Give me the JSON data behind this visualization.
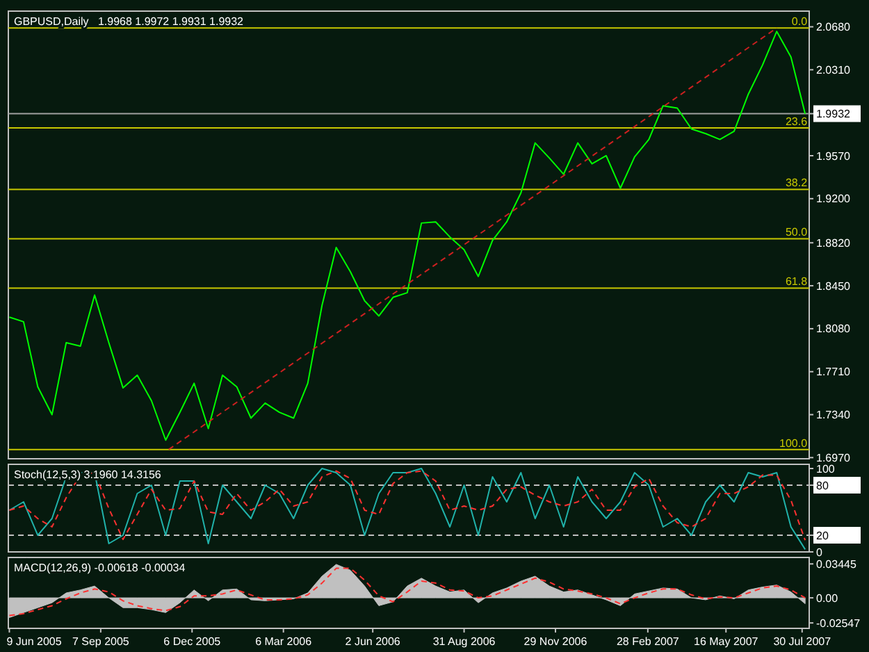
{
  "chart_data": [
    {
      "type": "line",
      "title": "GBPUSD,Daily   1.9968 1.9972 1.9931 1.9932",
      "x": [
        "2005-06-09",
        "2005-06-23",
        "2005-07-07",
        "2005-07-21",
        "2005-08-04",
        "2005-08-18",
        "2005-09-01",
        "2005-09-15",
        "2005-09-29",
        "2005-10-13",
        "2005-10-27",
        "2005-11-10",
        "2005-11-24",
        "2005-12-08",
        "2005-12-22",
        "2006-01-05",
        "2006-01-19",
        "2006-02-02",
        "2006-02-16",
        "2006-03-02",
        "2006-03-16",
        "2006-03-30",
        "2006-04-13",
        "2006-04-27",
        "2006-05-11",
        "2006-05-25",
        "2006-06-08",
        "2006-06-22",
        "2006-07-06",
        "2006-07-20",
        "2006-08-03",
        "2006-08-17",
        "2006-08-31",
        "2006-09-14",
        "2006-09-28",
        "2006-10-12",
        "2006-10-26",
        "2006-11-09",
        "2006-11-23",
        "2006-12-07",
        "2006-12-21",
        "2007-01-04",
        "2007-01-18",
        "2007-02-01",
        "2007-02-15",
        "2007-03-01",
        "2007-03-15",
        "2007-03-29",
        "2007-04-12",
        "2007-04-26",
        "2007-05-10",
        "2007-05-24",
        "2007-06-07",
        "2007-06-21",
        "2007-07-05",
        "2007-07-19",
        "2007-08-02"
      ],
      "xlim": [
        "2005-06-08",
        "2007-08-06"
      ],
      "ylim": [
        1.696,
        2.0815
      ],
      "yticks": [
        {
          "value": 2.068,
          "label": "2.0680"
        },
        {
          "value": 2.031,
          "label": "2.0310"
        },
        {
          "value": 1.9932,
          "label": "1.9932"
        },
        {
          "value": 1.957,
          "label": "1.9570"
        },
        {
          "value": 1.92,
          "label": "1.9200"
        },
        {
          "value": 1.882,
          "label": "1.8820"
        },
        {
          "value": 1.845,
          "label": "1.8450"
        },
        {
          "value": 1.808,
          "label": "1.8080"
        },
        {
          "value": 1.771,
          "label": "1.7710"
        },
        {
          "value": 1.734,
          "label": "1.7340"
        },
        {
          "value": 1.697,
          "label": "1.6970"
        }
      ],
      "tick_labels": "y",
      "series": [
        {
          "color": "#00ff00",
          "values": [
            1.818,
            1.814,
            1.758,
            1.734,
            1.796,
            1.793,
            1.837,
            1.796,
            1.757,
            1.768,
            1.746,
            1.712,
            1.736,
            1.761,
            1.722,
            1.768,
            1.758,
            1.731,
            1.744,
            1.736,
            1.731,
            1.761,
            1.828,
            1.878,
            1.857,
            1.832,
            1.819,
            1.835,
            1.839,
            1.899,
            1.9,
            1.887,
            1.876,
            1.853,
            1.884,
            1.9,
            1.925,
            1.968,
            1.955,
            1.941,
            1.968,
            1.95,
            1.957,
            1.929,
            1.956,
            1.971,
            2.0,
            1.998,
            1.98,
            1.976,
            1.971,
            1.978,
            2.01,
            2.035,
            2.064,
            2.042,
            1.993
          ]
        },
        {
          "type": "line",
          "color": "#cc2020",
          "line_style": "dashed",
          "x": [
            "2005-11-13",
            "2007-07-05"
          ],
          "values": [
            1.704,
            2.067
          ]
        }
      ],
      "ref_lines": [
        {
          "axis": "y",
          "value": 2.067,
          "color": "#c8c800"
        },
        {
          "axis": "y",
          "value": 1.981,
          "color": "#c8c800"
        },
        {
          "axis": "y",
          "value": 1.928,
          "color": "#c8c800"
        },
        {
          "axis": "y",
          "value": 1.8855,
          "color": "#c8c800"
        },
        {
          "axis": "y",
          "value": 1.843,
          "color": "#c8c800"
        },
        {
          "axis": "y",
          "value": 1.704,
          "color": "#c8c800"
        },
        {
          "axis": "y",
          "value": 1.9932,
          "color": "#a0a0a0"
        }
      ],
      "annotations": [
        {
          "text": "0.0",
          "x": "2007-08-04",
          "y": 2.067
        },
        {
          "text": "23.6",
          "x": "2007-08-04",
          "y": 1.981
        },
        {
          "text": "38.2",
          "x": "2007-08-04",
          "y": 1.928
        },
        {
          "text": "50.0",
          "x": "2007-08-04",
          "y": 1.8855
        },
        {
          "text": "61.8",
          "x": "2007-08-04",
          "y": 1.843
        },
        {
          "text": "100.0",
          "x": "2007-08-04",
          "y": 1.704
        }
      ]
    },
    {
      "type": "line",
      "title": "Stoch(12,5,3) 3.1960 14.3156",
      "x": [
        "2005-06-09",
        "2005-06-23",
        "2005-07-07",
        "2005-07-21",
        "2005-08-04",
        "2005-08-18",
        "2005-09-01",
        "2005-09-15",
        "2005-09-29",
        "2005-10-13",
        "2005-10-27",
        "2005-11-10",
        "2005-11-24",
        "2005-12-08",
        "2005-12-22",
        "2006-01-05",
        "2006-01-19",
        "2006-02-02",
        "2006-02-16",
        "2006-03-02",
        "2006-03-16",
        "2006-03-30",
        "2006-04-13",
        "2006-04-27",
        "2006-05-11",
        "2006-05-25",
        "2006-06-08",
        "2006-06-22",
        "2006-07-06",
        "2006-07-20",
        "2006-08-03",
        "2006-08-17",
        "2006-08-31",
        "2006-09-14",
        "2006-09-28",
        "2006-10-12",
        "2006-10-26",
        "2006-11-09",
        "2006-11-23",
        "2006-12-07",
        "2006-12-21",
        "2007-01-04",
        "2007-01-18",
        "2007-02-01",
        "2007-02-15",
        "2007-03-01",
        "2007-03-15",
        "2007-03-29",
        "2007-04-12",
        "2007-04-26",
        "2007-05-10",
        "2007-05-24",
        "2007-06-07",
        "2007-06-21",
        "2007-07-05",
        "2007-07-19",
        "2007-08-02"
      ],
      "xlim": [
        "2005-06-08",
        "2007-08-06"
      ],
      "ylim": [
        0,
        105
      ],
      "yticks": [
        0,
        20,
        80,
        100
      ],
      "tick_labels": "y",
      "series": [
        {
          "color": "#20b2aa",
          "values": [
            50,
            60,
            20,
            40,
            90,
            95,
            95,
            10,
            20,
            70,
            80,
            20,
            85,
            85,
            10,
            80,
            60,
            40,
            80,
            70,
            40,
            80,
            100,
            95,
            80,
            20,
            70,
            95,
            95,
            100,
            70,
            30,
            80,
            20,
            90,
            60,
            95,
            40,
            80,
            30,
            90,
            60,
            40,
            60,
            95,
            80,
            30,
            40,
            20,
            60,
            80,
            60,
            95,
            90,
            95,
            30,
            3
          ]
        },
        {
          "color": "#ff3030",
          "line_style": "dashed",
          "values": [
            50,
            55,
            40,
            30,
            65,
            92,
            95,
            52,
            15,
            45,
            75,
            50,
            52,
            85,
            48,
            45,
            70,
            50,
            60,
            75,
            55,
            60,
            90,
            97,
            88,
            50,
            45,
            82,
            95,
            97,
            85,
            50,
            55,
            50,
            55,
            75,
            78,
            68,
            60,
            55,
            60,
            75,
            50,
            50,
            78,
            88,
            55,
            35,
            30,
            40,
            70,
            70,
            78,
            92,
            92,
            62,
            14
          ]
        }
      ],
      "ref_lines": [
        {
          "axis": "y",
          "value": 20,
          "color": "#c0c0c0",
          "line_style": "dashed"
        },
        {
          "axis": "y",
          "value": 80,
          "color": "#c0c0c0",
          "line_style": "dashed"
        }
      ]
    },
    {
      "type": "area",
      "title": "MACD(12,26,9) -0.00618 -0.00034",
      "x": [
        "2005-06-09",
        "2005-06-23",
        "2005-07-07",
        "2005-07-21",
        "2005-08-04",
        "2005-08-18",
        "2005-09-01",
        "2005-09-15",
        "2005-09-29",
        "2005-10-13",
        "2005-10-27",
        "2005-11-10",
        "2005-11-24",
        "2005-12-08",
        "2005-12-22",
        "2006-01-05",
        "2006-01-19",
        "2006-02-02",
        "2006-02-16",
        "2006-03-02",
        "2006-03-16",
        "2006-03-30",
        "2006-04-13",
        "2006-04-27",
        "2006-05-11",
        "2006-05-25",
        "2006-06-08",
        "2006-06-22",
        "2006-07-06",
        "2006-07-20",
        "2006-08-03",
        "2006-08-17",
        "2006-08-31",
        "2006-09-14",
        "2006-09-28",
        "2006-10-12",
        "2006-10-26",
        "2006-11-09",
        "2006-11-23",
        "2006-12-07",
        "2006-12-21",
        "2007-01-04",
        "2007-01-18",
        "2007-02-01",
        "2007-02-15",
        "2007-03-01",
        "2007-03-15",
        "2007-03-29",
        "2007-04-12",
        "2007-04-26",
        "2007-05-10",
        "2007-05-24",
        "2007-06-07",
        "2007-06-21",
        "2007-07-05",
        "2007-07-19",
        "2007-08-02"
      ],
      "xlim": [
        "2005-06-08",
        "2007-08-06"
      ],
      "xticks": [
        {
          "value": "2005-06-09",
          "label": "9 Jun 2005"
        },
        {
          "value": "2005-09-07",
          "label": "7 Sep 2005"
        },
        {
          "value": "2005-12-06",
          "label": "6 Dec 2005"
        },
        {
          "value": "2006-03-06",
          "label": "6 Mar 2006"
        },
        {
          "value": "2006-06-02",
          "label": "2 Jun 2006"
        },
        {
          "value": "2006-08-31",
          "label": "31 Aug 2006"
        },
        {
          "value": "2006-11-29",
          "label": "29 Nov 2006"
        },
        {
          "value": "2007-02-28",
          "label": "28 Feb 2007"
        },
        {
          "value": "2007-05-16",
          "label": "16 May 2007"
        },
        {
          "value": "2007-07-30",
          "label": "30 Jul 2007"
        }
      ],
      "ylim": [
        -0.031,
        0.041
      ],
      "yticks": [
        {
          "value": 0.03445,
          "label": "0.03445"
        },
        {
          "value": 0,
          "label": "0.00"
        },
        {
          "value": -0.02547,
          "label": "-0.02547"
        }
      ],
      "series": [
        {
          "color": "#c0c0c0",
          "values": [
            -0.02,
            -0.015,
            -0.01,
            -0.005,
            0.005,
            0.008,
            0.012,
            0.0,
            -0.01,
            -0.01,
            -0.012,
            -0.015,
            -0.005,
            0.008,
            -0.003,
            0.008,
            0.009,
            -0.002,
            -0.003,
            -0.002,
            -0.001,
            0.005,
            0.022,
            0.034,
            0.028,
            0.012,
            -0.008,
            -0.004,
            0.012,
            0.02,
            0.012,
            0.006,
            0.008,
            -0.005,
            0.005,
            0.01,
            0.017,
            0.022,
            0.012,
            0.006,
            0.008,
            0.003,
            -0.002,
            -0.008,
            0.004,
            0.007,
            0.01,
            0.009,
            0.0,
            -0.002,
            0.002,
            -0.001,
            0.008,
            0.011,
            0.013,
            0.006,
            -0.006
          ]
        },
        {
          "type": "line",
          "color": "#ff3030",
          "line_style": "dashed",
          "values": [
            -0.018,
            -0.016,
            -0.012,
            -0.008,
            -0.001,
            0.005,
            0.009,
            0.006,
            -0.003,
            -0.008,
            -0.011,
            -0.013,
            -0.009,
            0.002,
            0.002,
            0.004,
            0.008,
            0.003,
            -0.002,
            -0.002,
            -0.001,
            0.003,
            0.015,
            0.03,
            0.03,
            0.018,
            0.002,
            -0.004,
            0.006,
            0.017,
            0.015,
            0.008,
            0.007,
            0.0,
            0.002,
            0.008,
            0.014,
            0.02,
            0.016,
            0.009,
            0.007,
            0.004,
            0.0,
            -0.006,
            0.0,
            0.005,
            0.009,
            0.009,
            0.003,
            -0.001,
            0.001,
            0.0,
            0.005,
            0.01,
            0.012,
            0.008,
            0.0
          ]
        }
      ]
    }
  ]
}
